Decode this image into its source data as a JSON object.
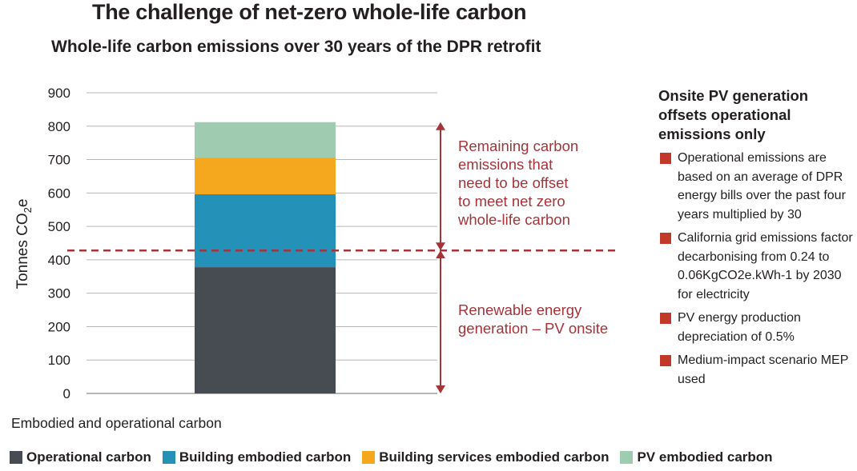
{
  "header": {
    "title": "The challenge of net-zero whole-life carbon",
    "subtitle": "Whole-life carbon emissions over 30 years of the DPR retrofit"
  },
  "chart_data": {
    "type": "bar",
    "stacked": true,
    "categories": [
      ""
    ],
    "series": [
      {
        "name": "Operational carbon",
        "values": [
          378
        ],
        "color": "#474c52"
      },
      {
        "name": "Building embodied carbon",
        "values": [
          218
        ],
        "color": "#2391b8"
      },
      {
        "name": "Building services embodied carbon",
        "values": [
          110
        ],
        "color": "#f5a81e"
      },
      {
        "name": "PV embodied carbon",
        "values": [
          106
        ],
        "color": "#9fcbb0"
      }
    ],
    "title": "Whole-life carbon emissions over 30 years of the DPR retrofit",
    "ylabel": "Tonnes CO2e",
    "xlabel": "Embodied and operational carbon",
    "ylim": [
      0,
      900
    ],
    "yticks": [
      "0",
      "100",
      "200",
      "300",
      "400",
      "500",
      "600",
      "700",
      "800",
      "900"
    ],
    "grid": true,
    "legend_position": "bottom",
    "threshold": {
      "value": 428,
      "color": "#a4343a"
    },
    "annotations": [
      {
        "label": "Remaining carbon emissions that need to be offset to meet net zero whole-life carbon",
        "from": 428,
        "to": 812
      },
      {
        "label": "Renewable energy generation – PV onsite",
        "from": 0,
        "to": 428
      }
    ]
  },
  "annotations_text": {
    "remaining": [
      "Remaining carbon",
      "emissions that",
      "need to be offset",
      "to meet net zero",
      "whole-life carbon"
    ],
    "renewable": [
      "Renewable energy",
      "generation – PV onsite"
    ]
  },
  "axis": {
    "ylabel_main": "Tonnes CO",
    "ylabel_sub": "2",
    "ylabel_end": "e"
  },
  "sidebar": {
    "heading": "Onsite PV generation offsets operational emissions only",
    "note_color": "#c0392b",
    "notes": [
      "Operational emissions are based on an average of DPR energy bills over the past four years multiplied by 30",
      "California grid emissions factor decarbonising from 0.24 to 0.06KgCO2e.kWh-1 by 2030 for electricity",
      "PV energy production depreciation of 0.5%",
      "Medium-impact scenario MEP used"
    ]
  },
  "xcaption": "Embodied and operational carbon",
  "legend": {
    "items": [
      {
        "label": "Operational carbon",
        "color": "#474c52"
      },
      {
        "label": "Building embodied carbon",
        "color": "#2391b8"
      },
      {
        "label": "Building services embodied carbon",
        "color": "#f5a81e"
      },
      {
        "label": "PV embodied carbon",
        "color": "#9fcbb0"
      }
    ]
  }
}
